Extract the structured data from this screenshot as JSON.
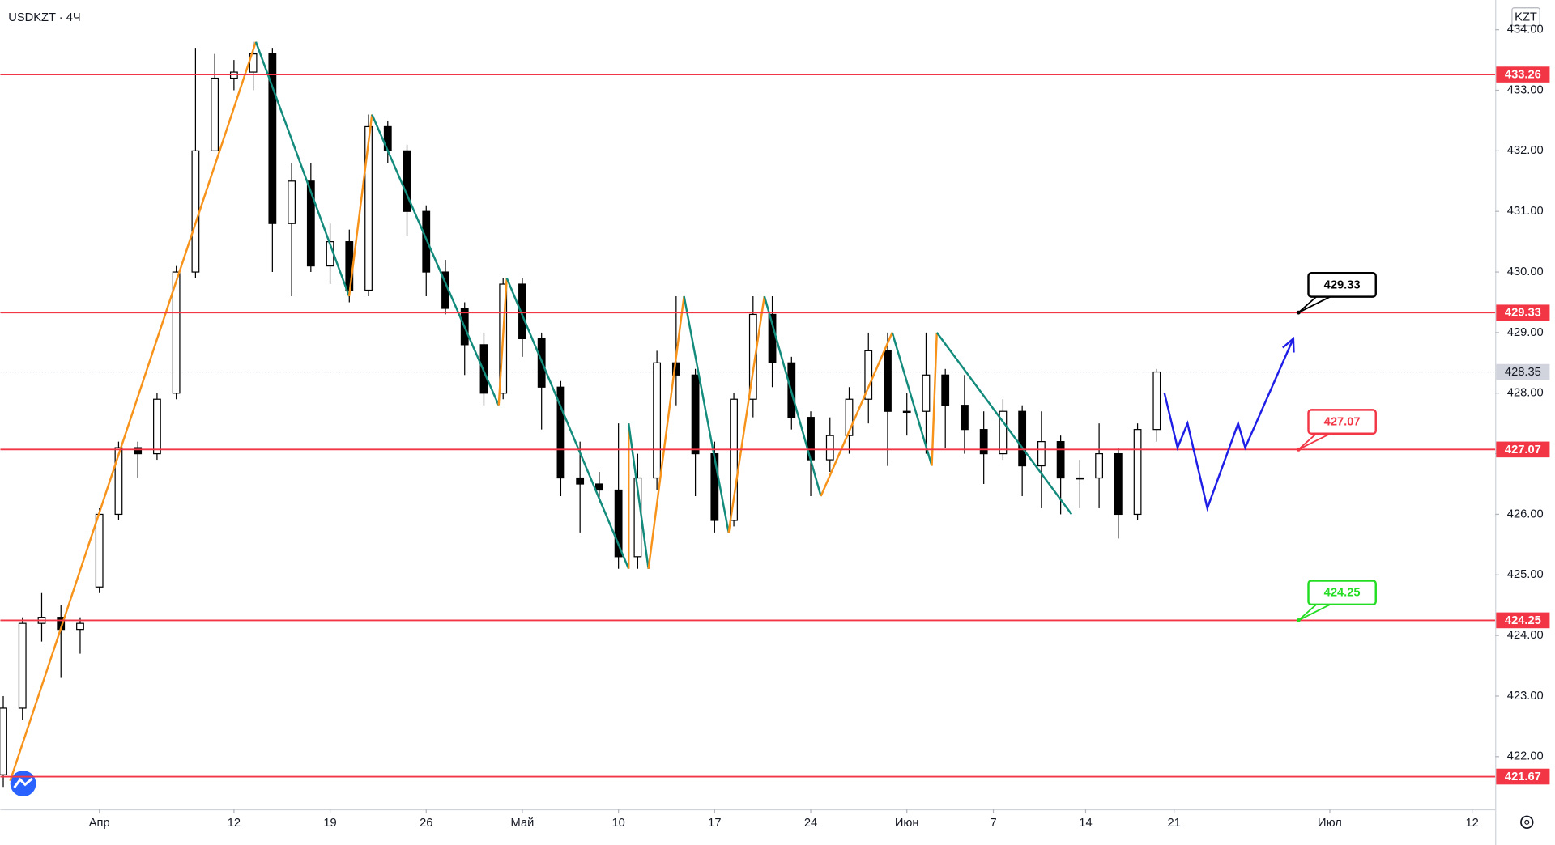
{
  "chart_data": {
    "type": "candlestick",
    "title": "USDKZT · 4Ч",
    "currency": "KZT",
    "x": [
      -5,
      -4,
      -3,
      -2,
      -1,
      0,
      1,
      2,
      3,
      4,
      5,
      6,
      7,
      8,
      9,
      10,
      11,
      12,
      13,
      14,
      15,
      16,
      17,
      18,
      19,
      20,
      21,
      22,
      23,
      24,
      25,
      26,
      27,
      28,
      29,
      30,
      31,
      32,
      33,
      34,
      35,
      36,
      37,
      38,
      39,
      40,
      41,
      42,
      43,
      44,
      45,
      46,
      47,
      48,
      49,
      50,
      51,
      52,
      53,
      54,
      55
    ],
    "open": [
      421.7,
      422.8,
      424.2,
      424.3,
      424.1,
      424.8,
      426.0,
      427.1,
      427.0,
      428.0,
      430.0,
      432.0,
      433.2,
      433.3,
      433.6,
      430.8,
      431.5,
      430.1,
      430.5,
      429.7,
      432.4,
      432.0,
      431.0,
      430.0,
      429.4,
      428.8,
      428.0,
      429.8,
      428.9,
      428.1,
      426.6,
      426.5,
      426.4,
      425.3,
      426.6,
      428.5,
      428.3,
      427.0,
      425.9,
      427.9,
      429.3,
      428.5,
      427.6,
      426.9,
      427.3,
      427.9,
      428.7,
      427.7,
      427.7,
      428.3,
      427.8,
      427.4,
      427.0,
      427.7,
      426.8,
      427.2,
      426.6,
      426.6,
      427.0,
      426.0,
      427.4
    ],
    "high": [
      423.0,
      424.3,
      424.7,
      424.5,
      424.3,
      426.1,
      427.2,
      427.2,
      428.0,
      430.1,
      433.7,
      433.6,
      433.5,
      433.8,
      433.7,
      431.8,
      431.8,
      430.8,
      430.7,
      432.6,
      432.5,
      432.1,
      431.1,
      430.2,
      429.5,
      429.0,
      429.9,
      429.9,
      429.0,
      428.2,
      427.2,
      426.7,
      427.5,
      427.0,
      428.7,
      429.6,
      428.4,
      427.2,
      428.0,
      429.6,
      429.6,
      428.6,
      427.7,
      427.6,
      428.1,
      429.0,
      429.0,
      428.0,
      429.0,
      428.4,
      428.3,
      427.7,
      427.9,
      427.8,
      427.7,
      427.3,
      426.9,
      427.5,
      427.1,
      427.5,
      428.4
    ],
    "low": [
      421.5,
      422.6,
      423.9,
      423.3,
      423.7,
      424.7,
      425.9,
      426.6,
      426.9,
      427.9,
      429.9,
      432.0,
      433.0,
      433.0,
      430.0,
      429.6,
      430.0,
      429.8,
      429.5,
      429.6,
      431.8,
      430.6,
      429.6,
      429.3,
      428.3,
      427.8,
      427.9,
      428.6,
      427.4,
      426.3,
      425.7,
      426.2,
      425.1,
      425.1,
      426.4,
      427.8,
      426.3,
      425.7,
      425.8,
      427.6,
      428.1,
      427.4,
      426.3,
      426.7,
      427.0,
      427.5,
      426.8,
      427.3,
      427.0,
      427.1,
      427.0,
      426.5,
      426.9,
      426.3,
      426.1,
      426.0,
      426.1,
      426.1,
      425.6,
      425.9,
      427.2
    ],
    "close": [
      422.8,
      424.2,
      424.3,
      424.1,
      424.2,
      426.0,
      427.1,
      427.0,
      427.9,
      430.0,
      432.0,
      433.2,
      433.3,
      433.6,
      430.8,
      431.5,
      430.1,
      430.5,
      429.7,
      432.4,
      432.0,
      431.0,
      430.0,
      429.4,
      428.8,
      428.0,
      429.8,
      428.9,
      428.1,
      426.6,
      426.5,
      426.4,
      425.3,
      426.6,
      428.5,
      428.3,
      427.0,
      425.9,
      427.9,
      429.3,
      428.5,
      427.6,
      426.9,
      427.3,
      427.9,
      428.7,
      427.7,
      427.7,
      428.3,
      427.8,
      427.4,
      427.0,
      427.7,
      426.8,
      427.2,
      426.6,
      426.6,
      427.0,
      426.0,
      427.4,
      428.35
    ],
    "up_color": "#ffffff",
    "down_color": "#000000",
    "wick_color": "#000000",
    "xlim": [
      -5.15,
      72.6
    ],
    "ylim": [
      421.13,
      434.49
    ],
    "xticks": [
      {
        "value": 0,
        "label": "Апр"
      },
      {
        "value": 7,
        "label": "12"
      },
      {
        "value": 12,
        "label": "19"
      },
      {
        "value": 17,
        "label": "26"
      },
      {
        "value": 22,
        "label": "Май"
      },
      {
        "value": 27,
        "label": "10"
      },
      {
        "value": 32,
        "label": "17"
      },
      {
        "value": 37,
        "label": "24"
      },
      {
        "value": 42,
        "label": "Июн"
      },
      {
        "value": 46.5,
        "label": "7"
      },
      {
        "value": 51.3,
        "label": "14"
      },
      {
        "value": 55.9,
        "label": "21"
      },
      {
        "value": 64,
        "label": "Июл"
      },
      {
        "value": 71.4,
        "label": "12"
      }
    ],
    "yticks": [
      {
        "value": 422,
        "label": "422.00"
      },
      {
        "value": 423,
        "label": "423.00"
      },
      {
        "value": 424,
        "label": "424.00"
      },
      {
        "value": 425,
        "label": "425.00"
      },
      {
        "value": 426,
        "label": "426.00"
      },
      {
        "value": 427,
        "label": "427.00"
      },
      {
        "value": 428,
        "label": "428.00"
      },
      {
        "value": 429,
        "label": "429.00"
      },
      {
        "value": 430,
        "label": "430.00"
      },
      {
        "value": 431,
        "label": "431.00"
      },
      {
        "value": 432,
        "label": "432.00"
      },
      {
        "value": 433,
        "label": "433.00"
      },
      {
        "value": 434,
        "label": "434.00"
      }
    ],
    "levels": {
      "color": "#f23645",
      "values": [
        433.26,
        429.33,
        427.07,
        424.25,
        421.67
      ],
      "value_labels": [
        "433.26",
        "429.33",
        "427.07",
        "424.25",
        "421.67"
      ]
    },
    "last_price_label": "428.35",
    "zigzag": {
      "up_color": "#f7931a",
      "down_color": "#138b7c",
      "x": [
        -4.64,
        8.14,
        12.99,
        14.18,
        20.77,
        21.19,
        27.53,
        27.53,
        28.56,
        30.41,
        32.73,
        34.59,
        37.53,
        41.24,
        43.3,
        43.56,
        50.57
      ],
      "y": [
        421.6,
        433.8,
        429.6,
        432.6,
        427.8,
        429.9,
        425.1,
        427.5,
        425.1,
        429.6,
        425.7,
        429.6,
        426.3,
        429.0,
        426.8,
        429.0,
        426.0
      ]
    },
    "forecast": {
      "color": "#1e1ee6",
      "x": [
        55.4,
        56.08,
        56.6,
        57.63,
        59.23,
        59.6,
        62.1
      ],
      "y": [
        428.0,
        427.1,
        427.5,
        426.1,
        427.5,
        427.1,
        428.9
      ]
    },
    "callouts": [
      {
        "x": 62.37,
        "value": 429.33,
        "label": "429.33",
        "color": "#000000",
        "fill": "#ffffff"
      },
      {
        "x": 62.37,
        "value": 427.07,
        "label": "427.07",
        "color": "#f23645",
        "fill": "#ffffff"
      },
      {
        "x": 62.37,
        "value": 424.25,
        "label": "424.25",
        "color": "#22dd22",
        "fill": "#ffffff"
      }
    ]
  }
}
